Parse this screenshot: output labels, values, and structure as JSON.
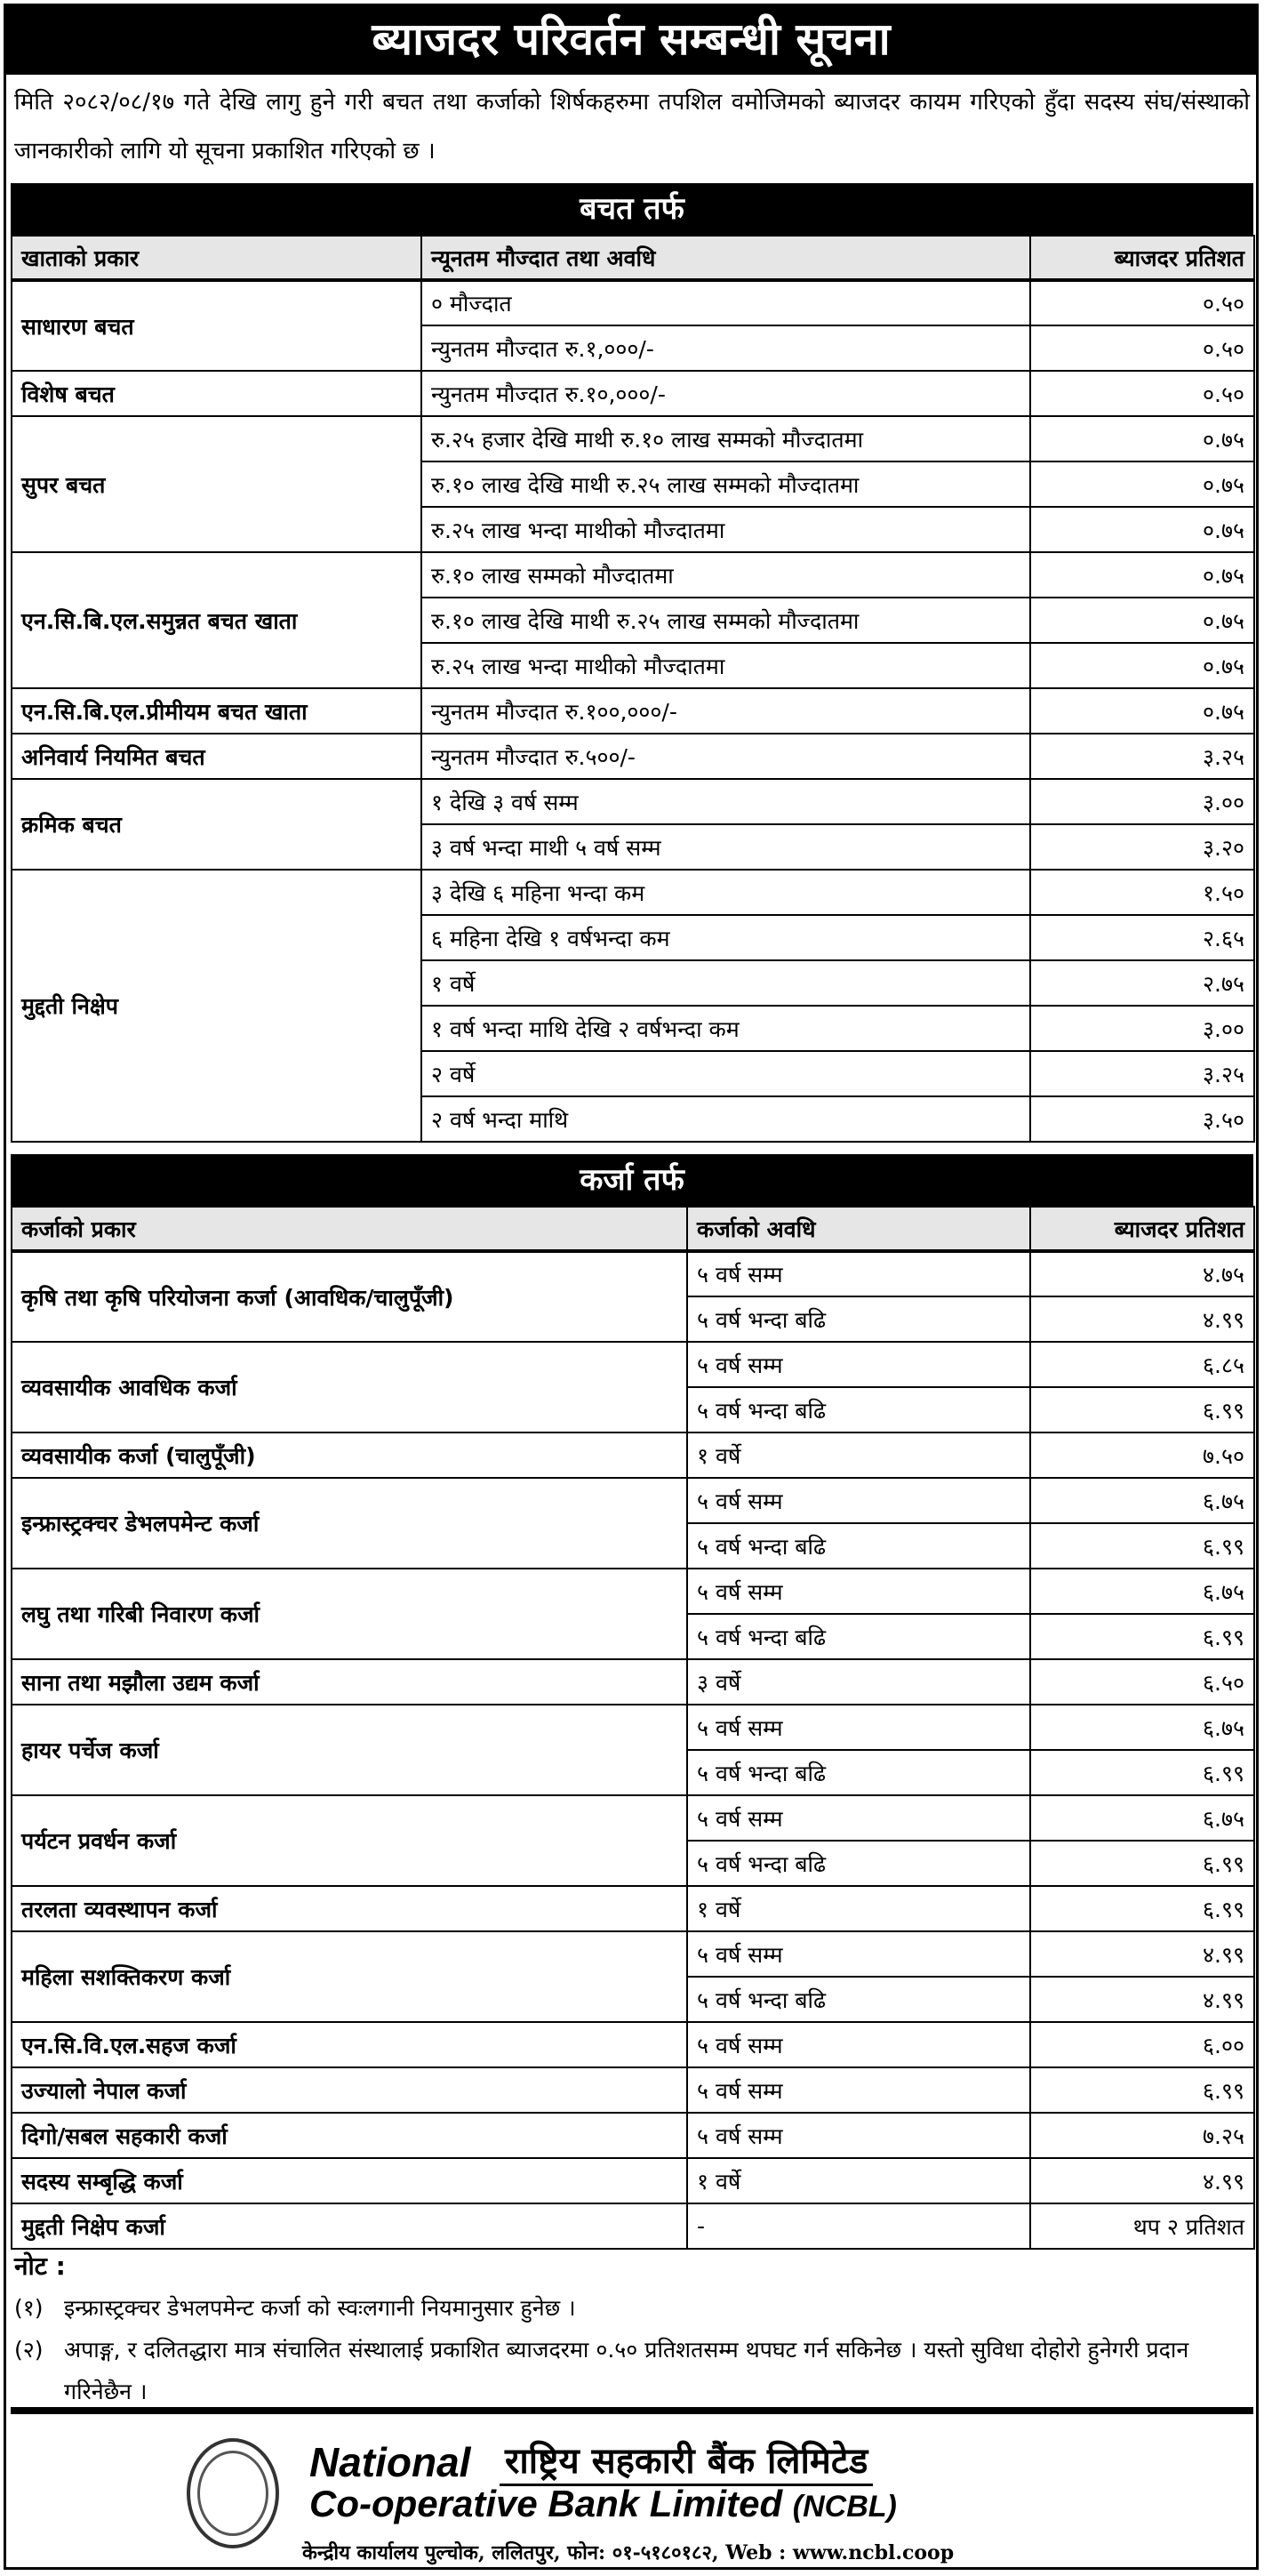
{
  "title": "ब्याजदर परिवर्तन सम्बन्धी सूचना",
  "intro": "मिति २०८२/०८/१७ गते देखि लागु हुने गरी बचत तथा कर्जाको शिर्षकहरुमा तपशिल वमोजिमको ब्याजदर कायम गरिएको हुँदा सदस्य संघ/संस्थाको जानकारीको लागि यो सूचना प्रकाशित गरिएको छ ।",
  "savings": {
    "heading": "बचत तर्फ",
    "columns": [
      "खाताको प्रकार",
      "न्यूनतम मौज्दात तथा अवधि",
      "ब्याजदर प्रतिशत"
    ],
    "groups": [
      {
        "name": "साधारण बचत",
        "rows": [
          [
            "० मौज्दात",
            "०.५०"
          ],
          [
            "न्युनतम मौज्दात रु.१,०००/-",
            "०.५०"
          ]
        ]
      },
      {
        "name": "विशेष बचत",
        "rows": [
          [
            "न्युनतम मौज्दात रु.१०,०००/-",
            "०.५०"
          ]
        ]
      },
      {
        "name": "सुपर बचत",
        "rows": [
          [
            "रु.२५ हजार देखि माथी रु.१० लाख सम्मको मौज्दातमा",
            "०.७५"
          ],
          [
            "रु.१० लाख देखि माथी रु.२५ लाख सम्मको मौज्दातमा",
            "०.७५"
          ],
          [
            "रु.२५ लाख भन्दा माथीको मौज्दातमा",
            "०.७५"
          ]
        ]
      },
      {
        "name": "एन.सि.बि.एल.समुन्नत बचत खाता",
        "rows": [
          [
            "रु.१० लाख सम्मको मौज्दातमा",
            "०.७५"
          ],
          [
            "रु.१० लाख देखि माथी रु.२५ लाख सम्मको मौज्दातमा",
            "०.७५"
          ],
          [
            "रु.२५ लाख भन्दा माथीको मौज्दातमा",
            "०.७५"
          ]
        ]
      },
      {
        "name": "एन.सि.बि.एल.प्रीमीयम बचत खाता",
        "rows": [
          [
            "न्युनतम मौज्दात रु.१००,०००/-",
            "०.७५"
          ]
        ]
      },
      {
        "name": "अनिवार्य नियमित बचत",
        "rows": [
          [
            "न्युनतम मौज्दात रु.५००/-",
            "३.२५"
          ]
        ]
      },
      {
        "name": "क्रमिक बचत",
        "rows": [
          [
            "१ देखि ३ वर्ष सम्म",
            "३.००"
          ],
          [
            "३ वर्ष भन्दा माथी ५ वर्ष सम्म",
            "३.२०"
          ]
        ]
      },
      {
        "name": "मुद्दती  निक्षेप",
        "rows": [
          [
            "३ देखि ६ महिना भन्दा कम",
            "१.५०"
          ],
          [
            "६ महिना देखि १ वर्षभन्दा कम",
            "२.६५"
          ],
          [
            "१ वर्षे",
            "२.७५"
          ],
          [
            "१ वर्ष भन्दा माथि देखि २ वर्षभन्दा कम",
            "३.००"
          ],
          [
            "२ वर्षे",
            "३.२५"
          ],
          [
            "२ वर्ष भन्दा माथि",
            "३.५०"
          ]
        ]
      }
    ]
  },
  "loans": {
    "heading": "कर्जा तर्फ",
    "columns": [
      "कर्जाको प्रकार",
      "कर्जाको अवधि",
      "ब्याजदर प्रतिशत"
    ],
    "groups": [
      {
        "name": "कृषि तथा कृषि परियोजना कर्जा  (आवधिक/चालुपूँजी)",
        "rows": [
          [
            "५ वर्ष सम्म",
            "४.७५"
          ],
          [
            "५ वर्ष भन्दा बढि",
            "४.९९"
          ]
        ]
      },
      {
        "name": "व्यवसायीक आवधिक कर्जा",
        "rows": [
          [
            "५ वर्ष सम्म",
            "६.८५"
          ],
          [
            "५ वर्ष भन्दा बढि",
            "६.९९"
          ]
        ]
      },
      {
        "name": "व्यवसायीक कर्जा (चालुपूँजी)",
        "rows": [
          [
            "१ वर्षे",
            "७.५०"
          ]
        ]
      },
      {
        "name": "इन्फ्रास्ट्रक्चर डेभलपमेन्ट कर्जा",
        "rows": [
          [
            "५ वर्ष सम्म",
            "६.७५"
          ],
          [
            "५ वर्ष भन्दा बढि",
            "६.९९"
          ]
        ]
      },
      {
        "name": "लघु तथा गरिबी निवारण कर्जा",
        "rows": [
          [
            "५ वर्ष सम्म",
            "६.७५"
          ],
          [
            "५ वर्ष भन्दा बढि",
            "६.९९"
          ]
        ]
      },
      {
        "name": "साना तथा मझौला उद्यम कर्जा",
        "rows": [
          [
            "३ वर्षे",
            "६.५०"
          ]
        ]
      },
      {
        "name": "हायर पर्चेज कर्जा",
        "rows": [
          [
            "५ वर्ष सम्म",
            "६.७५"
          ],
          [
            "५ वर्ष भन्दा बढि",
            "६.९९"
          ]
        ]
      },
      {
        "name": "पर्यटन प्रवर्धन कर्जा",
        "rows": [
          [
            "५ वर्ष सम्म",
            "६.७५"
          ],
          [
            "५ वर्ष भन्दा बढि",
            "६.९९"
          ]
        ]
      },
      {
        "name": "तरलता व्यवस्थापन कर्जा",
        "rows": [
          [
            "१ वर्षे",
            "६.९९"
          ]
        ]
      },
      {
        "name": "महिला सशक्तिकरण कर्जा",
        "rows": [
          [
            "५ वर्ष सम्म",
            "४.९९"
          ],
          [
            "५ वर्ष भन्दा बढि",
            "४.९९"
          ]
        ]
      },
      {
        "name": "एन.सि.वि.एल.सहज कर्जा",
        "rows": [
          [
            "५ वर्ष सम्म",
            "६.००"
          ]
        ]
      },
      {
        "name": "उज्यालो नेपाल कर्जा",
        "rows": [
          [
            "५ वर्ष सम्म",
            "६.९९"
          ]
        ]
      },
      {
        "name": "दिगो/सबल सहकारी कर्जा",
        "rows": [
          [
            "५ वर्ष सम्म",
            "७.२५"
          ]
        ]
      },
      {
        "name": "सदस्य सम्बृद्धि कर्जा",
        "rows": [
          [
            "१ वर्षे",
            "४.९९"
          ]
        ]
      },
      {
        "name": "मुद्दती निक्षेप कर्जा",
        "rows": [
          [
            "-",
            "थप २ प्रतिशत"
          ]
        ]
      }
    ]
  },
  "notes": {
    "label": "नोट :",
    "items": [
      {
        "num": "(१)",
        "text": "इन्फ्रास्ट्रक्चर डेभलपमेन्ट कर्जा को स्वःलगानी नियमानुसार हुनेछ ।"
      },
      {
        "num": "(२)",
        "text": "अपाङ्ग, र दलितद्धारा मात्र संचालित संस्थालाई प्रकाशित ब्याजदरमा ०.५० प्रतिशतसम्म थपघट गर्न सकिनेछ । यस्तो सुविधा दोहोरो हुनेगरी प्रदान गरिनेछैन ।"
      }
    ]
  },
  "footer": {
    "logo_text_en_1": "National",
    "logo_text_np": "राष्ट्रिय सहकारी बैंक लिमिटेड",
    "logo_text_en_2": "Co-operative Bank Limited",
    "logo_abbr": "(NCBL)",
    "address": "केन्द्रीय कार्यालय पुल्चोक, ललितपुर, फोन: ०१-५१८०१८२, Web : www.ncbl.coop"
  }
}
